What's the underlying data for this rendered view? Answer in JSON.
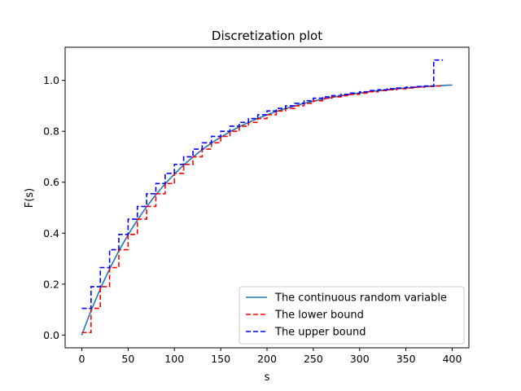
{
  "chart_data": {
    "type": "line",
    "title": "Discretization plot",
    "xlabel": "s",
    "ylabel": "F(s)",
    "xlim": [
      -18,
      418
    ],
    "ylim": [
      -0.05,
      1.13
    ],
    "xticks": [
      0,
      50,
      100,
      150,
      200,
      250,
      300,
      350,
      400
    ],
    "yticks": [
      0.0,
      0.2,
      0.4,
      0.6,
      0.8,
      1.0
    ],
    "xtick_labels": [
      "0",
      "50",
      "100",
      "150",
      "200",
      "250",
      "300",
      "350",
      "400"
    ],
    "ytick_labels": [
      "0.0",
      "0.2",
      "0.4",
      "0.6",
      "0.8",
      "1.0"
    ],
    "grid": false,
    "legend_position": "lower-right",
    "series": [
      {
        "name": "The continuous random variable",
        "color": "#1f77b4",
        "style": "solid",
        "kind": "exponential-cdf",
        "scale": 100,
        "x_range": [
          0,
          400
        ]
      },
      {
        "name": "The lower bound",
        "color": "#ff0000",
        "style": "dashed",
        "kind": "step",
        "step_x": [
          0,
          10,
          20,
          30,
          40,
          50,
          60,
          70,
          80,
          90,
          100,
          110,
          120,
          130,
          140,
          150,
          160,
          170,
          180,
          190,
          200,
          210,
          220,
          230,
          240,
          250,
          260,
          270,
          280,
          290,
          300,
          310,
          320,
          330,
          340,
          350,
          360,
          370,
          380,
          390
        ],
        "step_y": [
          0.01,
          0.105,
          0.19,
          0.265,
          0.335,
          0.395,
          0.455,
          0.505,
          0.555,
          0.595,
          0.635,
          0.67,
          0.7,
          0.73,
          0.755,
          0.78,
          0.8,
          0.82,
          0.835,
          0.85,
          0.865,
          0.88,
          0.89,
          0.9,
          0.91,
          0.92,
          0.93,
          0.935,
          0.94,
          0.945,
          0.95,
          0.955,
          0.96,
          0.963,
          0.967,
          0.97,
          0.973,
          0.976,
          0.978,
          0.98
        ]
      },
      {
        "name": "The upper bound",
        "color": "#0000ff",
        "style": "dashed",
        "kind": "step",
        "step_x": [
          0,
          10,
          20,
          30,
          40,
          50,
          60,
          70,
          80,
          90,
          100,
          110,
          120,
          130,
          140,
          150,
          160,
          170,
          180,
          190,
          200,
          210,
          220,
          230,
          240,
          250,
          260,
          270,
          280,
          290,
          300,
          310,
          320,
          330,
          340,
          350,
          360,
          370,
          380,
          390
        ],
        "step_y": [
          0.105,
          0.19,
          0.265,
          0.335,
          0.395,
          0.455,
          0.505,
          0.555,
          0.595,
          0.635,
          0.67,
          0.7,
          0.73,
          0.755,
          0.78,
          0.8,
          0.82,
          0.835,
          0.85,
          0.865,
          0.88,
          0.89,
          0.9,
          0.91,
          0.92,
          0.93,
          0.935,
          0.94,
          0.945,
          0.95,
          0.955,
          0.96,
          0.963,
          0.967,
          0.97,
          0.973,
          0.976,
          0.978,
          1.08,
          1.08
        ]
      }
    ]
  }
}
